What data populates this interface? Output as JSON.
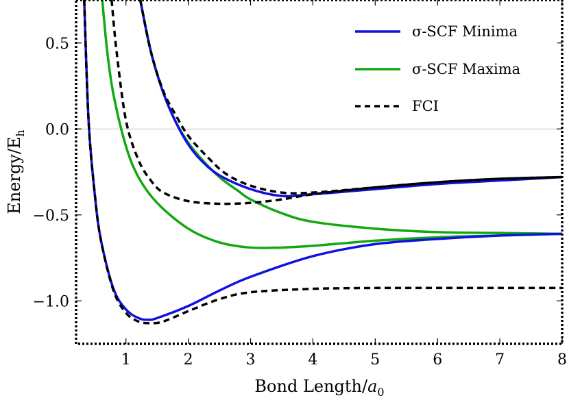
{
  "chart_data": {
    "type": "line",
    "title": "",
    "xlabel": "Bond Length/",
    "xlabel_symbol": "a",
    "xlabel_subscript": "0",
    "ylabel": "Energy/E",
    "ylabel_subscript": "h",
    "xlim": [
      0.2,
      8
    ],
    "ylim": [
      -1.25,
      0.75
    ],
    "xticks": [
      1,
      2,
      3,
      4,
      5,
      6,
      7,
      8
    ],
    "xtick_labels": [
      "1",
      "2",
      "3",
      "4",
      "5",
      "6",
      "7",
      "8"
    ],
    "yticks": [
      0.5,
      0.0,
      -0.5,
      -1.0
    ],
    "ytick_labels": [
      "0.5",
      "0.0",
      "−0.5",
      "−1.0"
    ],
    "grid": false,
    "zero_line": true,
    "legend_position": "top-right",
    "legend": [
      {
        "label": "σ-SCF Minima",
        "color": "#1010e0",
        "style": "solid"
      },
      {
        "label": "σ-SCF Maxima",
        "color": "#12a812",
        "style": "solid"
      },
      {
        "label": "FCI",
        "color": "#000000",
        "style": "dashed"
      }
    ],
    "series": [
      {
        "group": "σ-SCF Minima",
        "color": "#1010e0",
        "dash": false,
        "x": [
          0.33,
          0.4,
          0.5,
          0.6,
          0.8,
          1.0,
          1.2,
          1.35,
          1.5,
          2.0,
          2.5,
          3.0,
          4.0,
          5.0,
          6.0,
          7.0,
          8.0
        ],
        "y": [
          0.75,
          0.05,
          -0.38,
          -0.65,
          -0.93,
          -1.05,
          -1.1,
          -1.11,
          -1.1,
          -1.03,
          -0.94,
          -0.86,
          -0.74,
          -0.67,
          -0.64,
          -0.62,
          -0.61
        ]
      },
      {
        "group": "σ-SCF Minima",
        "color": "#1010e0",
        "dash": false,
        "x": [
          1.23,
          1.4,
          1.6,
          1.8,
          2.0,
          2.2,
          2.5,
          3.0,
          3.5,
          4.0,
          5.0,
          6.0,
          7.0,
          8.0
        ],
        "y": [
          0.75,
          0.45,
          0.21,
          0.04,
          -0.09,
          -0.18,
          -0.27,
          -0.35,
          -0.39,
          -0.38,
          -0.35,
          -0.32,
          -0.3,
          -0.28
        ]
      },
      {
        "group": "σ-SCF Maxima",
        "color": "#12a812",
        "dash": false,
        "x": [
          0.62,
          0.7,
          0.8,
          1.0,
          1.2,
          1.5,
          2.0,
          2.5,
          3.0,
          3.5,
          4.0,
          5.0,
          6.0,
          7.0,
          8.0
        ],
        "y": [
          0.75,
          0.45,
          0.2,
          -0.1,
          -0.28,
          -0.43,
          -0.58,
          -0.66,
          -0.69,
          -0.69,
          -0.68,
          -0.65,
          -0.63,
          -0.62,
          -0.61
        ]
      },
      {
        "group": "σ-SCF Maxima",
        "color": "#12a812",
        "dash": false,
        "x": [
          1.23,
          1.4,
          1.6,
          1.8,
          2.0,
          2.2,
          2.5,
          2.8,
          3.0,
          3.5,
          4.0,
          5.0,
          6.0,
          7.0,
          8.0
        ],
        "y": [
          0.75,
          0.45,
          0.21,
          0.04,
          -0.08,
          -0.17,
          -0.28,
          -0.36,
          -0.41,
          -0.49,
          -0.54,
          -0.58,
          -0.6,
          -0.605,
          -0.61
        ]
      },
      {
        "group": "FCI",
        "color": "#000000",
        "dash": true,
        "x": [
          0.33,
          0.4,
          0.5,
          0.6,
          0.8,
          1.0,
          1.2,
          1.4,
          1.6,
          2.0,
          2.5,
          3.0,
          4.0,
          5.0,
          6.0,
          7.0,
          8.0
        ],
        "y": [
          0.75,
          0.05,
          -0.38,
          -0.65,
          -0.94,
          -1.07,
          -1.12,
          -1.13,
          -1.12,
          -1.06,
          -0.99,
          -0.95,
          -0.93,
          -0.925,
          -0.925,
          -0.925,
          -0.925
        ]
      },
      {
        "group": "FCI",
        "color": "#000000",
        "dash": true,
        "x": [
          0.77,
          0.85,
          1.0,
          1.2,
          1.4,
          1.6,
          2.0,
          2.5,
          3.0,
          3.5,
          4.0,
          5.0,
          6.0,
          7.0,
          8.0
        ],
        "y": [
          0.75,
          0.45,
          0.05,
          -0.18,
          -0.3,
          -0.37,
          -0.42,
          -0.435,
          -0.43,
          -0.41,
          -0.38,
          -0.34,
          -0.31,
          -0.29,
          -0.28
        ]
      },
      {
        "group": "FCI",
        "color": "#000000",
        "dash": true,
        "x": [
          1.23,
          1.4,
          1.6,
          1.8,
          2.0,
          2.3,
          2.6,
          3.0,
          3.5,
          4.0,
          5.0,
          6.0,
          7.0,
          8.0
        ],
        "y": [
          0.75,
          0.45,
          0.22,
          0.08,
          -0.04,
          -0.16,
          -0.26,
          -0.33,
          -0.37,
          -0.37,
          -0.34,
          -0.31,
          -0.29,
          -0.28
        ]
      }
    ]
  }
}
